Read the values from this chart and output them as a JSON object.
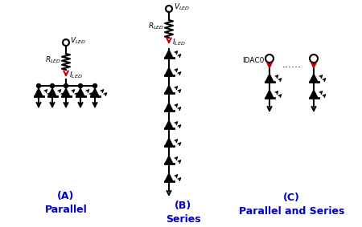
{
  "bg_color": "#ffffff",
  "line_color": "#000000",
  "label_color": "#0000cc",
  "arrow_color": "#cc0000",
  "title_A": "(A)\nParallel",
  "title_B": "(B)\nSeries",
  "title_C": "(C)\nParallel and Series",
  "label_IDAC": "IDAC0",
  "figsize": [
    4.5,
    2.83
  ],
  "dpi": 100
}
